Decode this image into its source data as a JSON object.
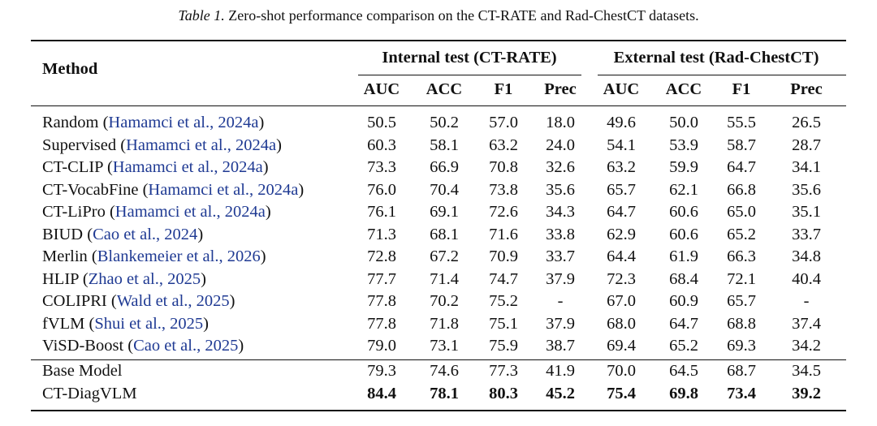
{
  "caption": {
    "label": "Table 1.",
    "text": "Zero-shot performance comparison on the CT-RATE and Rad-ChestCT datasets."
  },
  "table": {
    "method_header": "Method",
    "citation_brackets": [
      "(",
      ")"
    ],
    "groups": [
      {
        "label": "Internal test (CT-RATE)",
        "columns": [
          "AUC",
          "ACC",
          "F1",
          "Prec"
        ]
      },
      {
        "label": "External test (Rad-ChestCT)",
        "columns": [
          "AUC",
          "ACC",
          "F1",
          "Prec"
        ]
      }
    ],
    "sections": [
      [
        {
          "method": "Random",
          "cite": "Hamamci et al., 2024a",
          "values": [
            "50.5",
            "50.2",
            "57.0",
            "18.0",
            "49.6",
            "50.0",
            "55.5",
            "26.5"
          ]
        },
        {
          "method": "Supervised",
          "cite": "Hamamci et al., 2024a",
          "values": [
            "60.3",
            "58.1",
            "63.2",
            "24.0",
            "54.1",
            "53.9",
            "58.7",
            "28.7"
          ]
        },
        {
          "method": "CT-CLIP",
          "cite": "Hamamci et al., 2024a",
          "values": [
            "73.3",
            "66.9",
            "70.8",
            "32.6",
            "63.2",
            "59.9",
            "64.7",
            "34.1"
          ]
        },
        {
          "method": "CT-VocabFine",
          "cite": "Hamamci et al., 2024a",
          "values": [
            "76.0",
            "70.4",
            "73.8",
            "35.6",
            "65.7",
            "62.1",
            "66.8",
            "35.6"
          ]
        },
        {
          "method": "CT-LiPro",
          "cite": "Hamamci et al., 2024a",
          "values": [
            "76.1",
            "69.1",
            "72.6",
            "34.3",
            "64.7",
            "60.6",
            "65.0",
            "35.1"
          ]
        },
        {
          "method": "BIUD",
          "cite": "Cao et al., 2024",
          "values": [
            "71.3",
            "68.1",
            "71.6",
            "33.8",
            "62.9",
            "60.6",
            "65.2",
            "33.7"
          ]
        },
        {
          "method": "Merlin",
          "cite": "Blankemeier et al., 2026",
          "values": [
            "72.8",
            "67.2",
            "70.9",
            "33.7",
            "64.4",
            "61.9",
            "66.3",
            "34.8"
          ]
        },
        {
          "method": "HLIP",
          "cite": "Zhao et al., 2025",
          "values": [
            "77.7",
            "71.4",
            "74.7",
            "37.9",
            "72.3",
            "68.4",
            "72.1",
            "40.4"
          ]
        },
        {
          "method": "COLIPRI",
          "cite": "Wald et al., 2025",
          "values": [
            "77.8",
            "70.2",
            "75.2",
            "-",
            "67.0",
            "60.9",
            "65.7",
            "-"
          ]
        },
        {
          "method": "fVLM",
          "cite": "Shui et al., 2025",
          "values": [
            "77.8",
            "71.8",
            "75.1",
            "37.9",
            "68.0",
            "64.7",
            "68.8",
            "37.4"
          ]
        },
        {
          "method": "ViSD-Boost",
          "cite": "Cao et al., 2025",
          "values": [
            "79.0",
            "73.1",
            "75.9",
            "38.7",
            "69.4",
            "65.2",
            "69.3",
            "34.2"
          ]
        }
      ],
      [
        {
          "method": "Base Model",
          "values": [
            "79.3",
            "74.6",
            "77.3",
            "41.9",
            "70.0",
            "64.5",
            "68.7",
            "34.5"
          ]
        },
        {
          "method": "CT-DiagVLM",
          "values": [
            "84.4",
            "78.1",
            "80.3",
            "45.2",
            "75.4",
            "69.8",
            "73.4",
            "39.2"
          ]
        }
      ]
    ]
  }
}
